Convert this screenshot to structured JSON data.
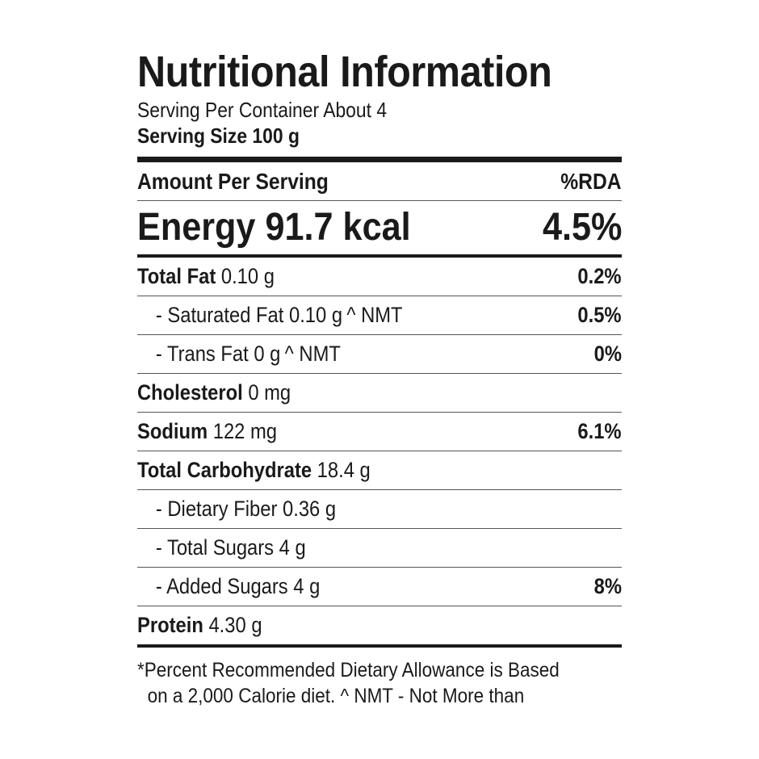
{
  "title": "Nutritional Information",
  "servings_per_container": "Serving Per Container About 4",
  "serving_size": "Serving Size 100 g",
  "header": {
    "left": "Amount Per Serving",
    "right": "%RDA"
  },
  "energy": {
    "label": "Energy 91.7 kcal",
    "rda": "4.5%"
  },
  "nutrients": [
    {
      "name": "Total Fat",
      "amount": "0.10 g",
      "note": "",
      "rda": "0.2%"
    },
    {
      "name": "- Saturated Fat",
      "amount": "0.10 g",
      "note": "^ NMT",
      "rda": "0.5%"
    },
    {
      "name": "- Trans Fat",
      "amount": "0 g",
      "note": "^ NMT",
      "rda": "0%"
    },
    {
      "name": "Cholesterol",
      "amount": "0 mg",
      "note": "",
      "rda": ""
    },
    {
      "name": "Sodium",
      "amount": "122 mg",
      "note": "",
      "rda": "6.1%"
    },
    {
      "name": "Total Carbohydrate",
      "amount": "18.4 g",
      "note": "",
      "rda": ""
    },
    {
      "name": "- Dietary Fiber",
      "amount": "0.36 g",
      "note": "",
      "rda": ""
    },
    {
      "name": "- Total Sugars",
      "amount": "4 g",
      "note": "",
      "rda": ""
    },
    {
      "name": "- Added Sugars",
      "amount": "4 g",
      "note": "",
      "rda": "8%"
    },
    {
      "name": "Protein",
      "amount": "4.30 g",
      "note": "",
      "rda": ""
    }
  ],
  "footnote": {
    "line1": "*Percent Recommended Dietary Allowance is Based",
    "line2": "on a 2,000 Calorie diet.  ^ NMT - Not More than"
  }
}
